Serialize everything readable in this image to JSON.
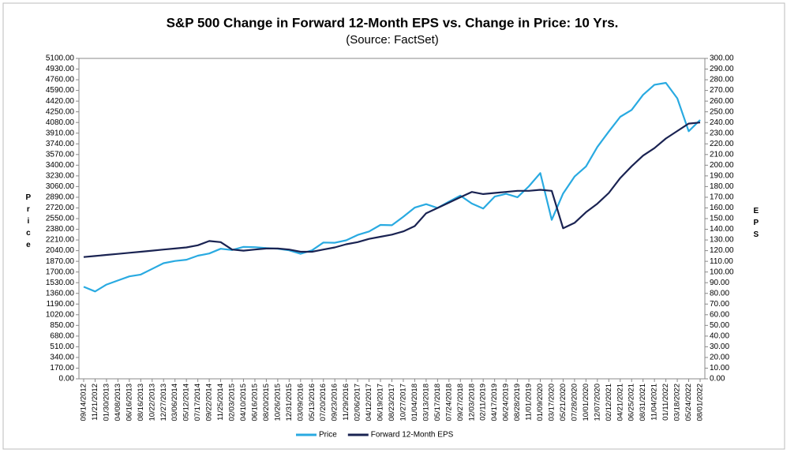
{
  "chart_data": {
    "type": "line",
    "title": "S&P 500 Change in Forward 12-Month EPS vs. Change in Price: 10 Yrs.",
    "subtitle": "(Source: FactSet)",
    "y_label": "Price",
    "y2_label": "EPS",
    "legend": "bottom",
    "categories": [
      "09/14/2012",
      "11/21/2012",
      "01/30/2013",
      "04/08/2013",
      "06/16/2013",
      "08/16/2013",
      "10/22/2013",
      "12/27/2013",
      "03/06/2014",
      "05/12/2014",
      "07/17/2014",
      "09/22/2014",
      "11/25/2014",
      "02/03/2015",
      "04/10/2015",
      "06/16/2015",
      "08/20/2015",
      "10/26/2015",
      "12/31/2015",
      "03/09/2016",
      "05/13/2016",
      "07/20/2016",
      "09/23/2016",
      "11/29/2016",
      "02/06/2017",
      "04/12/2017",
      "06/19/2017",
      "08/23/2017",
      "10/27/2017",
      "01/04/2018",
      "03/13/2018",
      "05/17/2018",
      "07/24/2018",
      "09/27/2018",
      "12/03/2018",
      "02/11/2019",
      "04/17/2019",
      "06/24/2019",
      "08/28/2019",
      "11/01/2019",
      "01/09/2020",
      "03/17/2020",
      "05/21/2020",
      "07/28/2020",
      "10/01/2020",
      "12/07/2020",
      "02/12/2021",
      "04/21/2021",
      "06/25/2021",
      "08/31/2021",
      "11/04/2021",
      "01/11/2022",
      "03/18/2022",
      "05/24/2022",
      "08/01/2022"
    ],
    "series": [
      {
        "name": "Price",
        "color": "#29aae1",
        "axis": "y",
        "values": [
          1465,
          1390,
          1500,
          1565,
          1630,
          1660,
          1750,
          1840,
          1875,
          1895,
          1960,
          1995,
          2070,
          2050,
          2100,
          2095,
          2080,
          2070,
          2045,
          1990,
          2045,
          2170,
          2165,
          2205,
          2290,
          2345,
          2450,
          2445,
          2580,
          2725,
          2780,
          2720,
          2820,
          2915,
          2790,
          2710,
          2900,
          2945,
          2890,
          3065,
          3275,
          2530,
          2950,
          3220,
          3380,
          3690,
          3935,
          4170,
          4280,
          4520,
          4680,
          4710,
          4465,
          3940,
          4120
        ]
      },
      {
        "name": "Forward 12-Month EPS",
        "color": "#1a2352",
        "axis": "y2",
        "values": [
          114,
          115,
          116,
          117,
          118,
          119,
          120,
          121,
          122,
          123,
          125,
          129,
          128,
          121,
          120,
          121,
          122,
          122,
          121,
          119,
          119,
          121,
          123,
          126,
          128,
          131,
          133,
          135,
          138,
          143,
          155,
          160,
          165,
          170,
          175,
          173,
          174,
          175,
          176,
          176,
          177,
          176,
          141,
          146,
          156,
          164,
          174,
          188,
          199,
          209,
          216,
          225,
          232,
          239,
          240
        ]
      }
    ],
    "ylim": [
      0,
      5100
    ],
    "yticks": [
      {
        "value": 0,
        "label": "0.00"
      },
      {
        "value": 170,
        "label": "170.00"
      },
      {
        "value": 340,
        "label": "340.00"
      },
      {
        "value": 510,
        "label": "510.00"
      },
      {
        "value": 680,
        "label": "680.00"
      },
      {
        "value": 850,
        "label": "850.00"
      },
      {
        "value": 1020,
        "label": "1020.00"
      },
      {
        "value": 1190,
        "label": "1190.00"
      },
      {
        "value": 1360,
        "label": "1360.00"
      },
      {
        "value": 1530,
        "label": "1530.00"
      },
      {
        "value": 1700,
        "label": "1700.00"
      },
      {
        "value": 1870,
        "label": "1870.00"
      },
      {
        "value": 2040,
        "label": "2040.00"
      },
      {
        "value": 2210,
        "label": "2210.00"
      },
      {
        "value": 2380,
        "label": "2380.00"
      },
      {
        "value": 2550,
        "label": "2550.00"
      },
      {
        "value": 2720,
        "label": "2720.00"
      },
      {
        "value": 2890,
        "label": "2890.00"
      },
      {
        "value": 3060,
        "label": "3060.00"
      },
      {
        "value": 3230,
        "label": "3230.00"
      },
      {
        "value": 3400,
        "label": "3400.00"
      },
      {
        "value": 3570,
        "label": "3570.00"
      },
      {
        "value": 3740,
        "label": "3740.00"
      },
      {
        "value": 3910,
        "label": "3910.00"
      },
      {
        "value": 4080,
        "label": "4080.00"
      },
      {
        "value": 4250,
        "label": "4250.00"
      },
      {
        "value": 4420,
        "label": "4420.00"
      },
      {
        "value": 4590,
        "label": "4590.00"
      },
      {
        "value": 4760,
        "label": "4760.00"
      },
      {
        "value": 4930,
        "label": "4930.00"
      },
      {
        "value": 5100,
        "label": "5100.00"
      }
    ],
    "y2lim": [
      0,
      300
    ],
    "y2ticks": [
      {
        "value": 0,
        "label": "0.00"
      },
      {
        "value": 10,
        "label": "10.00"
      },
      {
        "value": 20,
        "label": "20.00"
      },
      {
        "value": 30,
        "label": "30.00"
      },
      {
        "value": 40,
        "label": "40.00"
      },
      {
        "value": 50,
        "label": "50.00"
      },
      {
        "value": 60,
        "label": "60.00"
      },
      {
        "value": 70,
        "label": "70.00"
      },
      {
        "value": 80,
        "label": "80.00"
      },
      {
        "value": 90,
        "label": "90.00"
      },
      {
        "value": 100,
        "label": "100.00"
      },
      {
        "value": 110,
        "label": "110.00"
      },
      {
        "value": 120,
        "label": "120.00"
      },
      {
        "value": 130,
        "label": "130.00"
      },
      {
        "value": 140,
        "label": "140.00"
      },
      {
        "value": 150,
        "label": "150.00"
      },
      {
        "value": 160,
        "label": "160.00"
      },
      {
        "value": 170,
        "label": "170.00"
      },
      {
        "value": 180,
        "label": "180.00"
      },
      {
        "value": 190,
        "label": "190.00"
      },
      {
        "value": 200,
        "label": "200.00"
      },
      {
        "value": 210,
        "label": "210.00"
      },
      {
        "value": 220,
        "label": "220.00"
      },
      {
        "value": 230,
        "label": "230.00"
      },
      {
        "value": 240,
        "label": "240.00"
      },
      {
        "value": 250,
        "label": "250.00"
      },
      {
        "value": 260,
        "label": "260.00"
      },
      {
        "value": 270,
        "label": "270.00"
      },
      {
        "value": 280,
        "label": "280.00"
      },
      {
        "value": 290,
        "label": "290.00"
      },
      {
        "value": 300,
        "label": "300.00"
      }
    ]
  }
}
